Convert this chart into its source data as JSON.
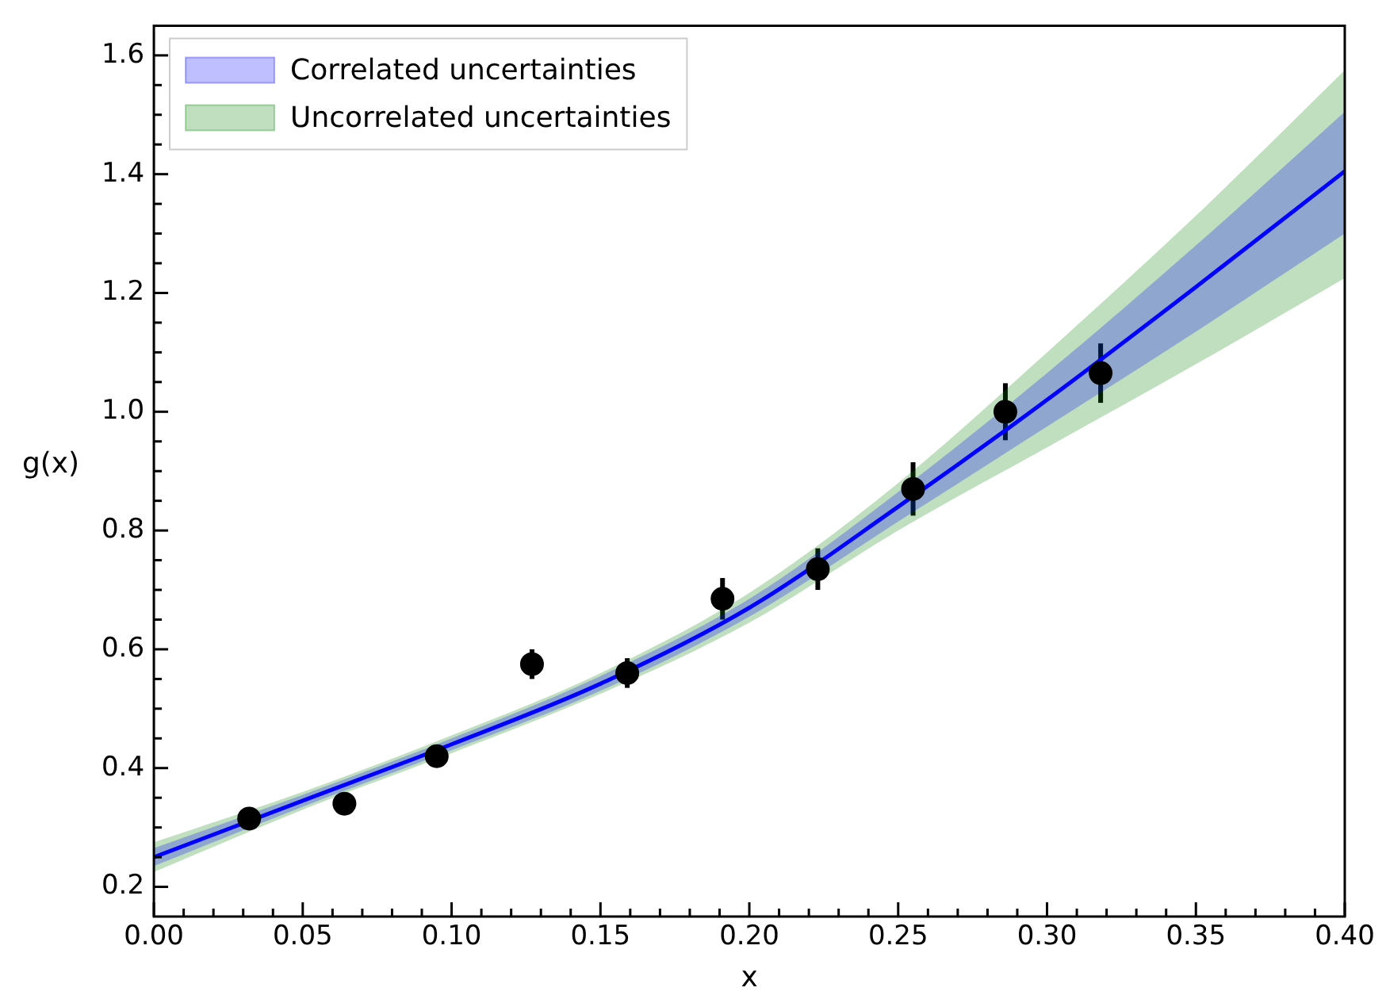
{
  "chart_data": {
    "type": "line",
    "xlabel": "x",
    "ylabel": "g(x)",
    "xlim": [
      0,
      0.4
    ],
    "ylim": [
      0.15,
      1.65
    ],
    "xticks": [
      {
        "value": 0,
        "label": "0.00"
      },
      {
        "value": 0.01,
        "label": null
      },
      {
        "value": 0.02,
        "label": null
      },
      {
        "value": 0.03,
        "label": null
      },
      {
        "value": 0.04,
        "label": null
      },
      {
        "value": 0.05,
        "label": "0.05"
      },
      {
        "value": 0.06,
        "label": null
      },
      {
        "value": 0.07,
        "label": null
      },
      {
        "value": 0.08,
        "label": null
      },
      {
        "value": 0.09,
        "label": null
      },
      {
        "value": 0.1,
        "label": "0.10"
      },
      {
        "value": 0.11,
        "label": null
      },
      {
        "value": 0.12,
        "label": null
      },
      {
        "value": 0.13,
        "label": null
      },
      {
        "value": 0.14,
        "label": null
      },
      {
        "value": 0.15,
        "label": "0.15"
      },
      {
        "value": 0.16,
        "label": null
      },
      {
        "value": 0.17,
        "label": null
      },
      {
        "value": 0.18,
        "label": null
      },
      {
        "value": 0.19,
        "label": null
      },
      {
        "value": 0.2,
        "label": "0.20"
      },
      {
        "value": 0.21,
        "label": null
      },
      {
        "value": 0.22,
        "label": null
      },
      {
        "value": 0.23,
        "label": null
      },
      {
        "value": 0.24,
        "label": null
      },
      {
        "value": 0.25,
        "label": "0.25"
      },
      {
        "value": 0.26,
        "label": null
      },
      {
        "value": 0.27,
        "label": null
      },
      {
        "value": 0.28,
        "label": null
      },
      {
        "value": 0.29,
        "label": null
      },
      {
        "value": 0.3,
        "label": "0.30"
      },
      {
        "value": 0.31,
        "label": null
      },
      {
        "value": 0.32,
        "label": null
      },
      {
        "value": 0.33,
        "label": null
      },
      {
        "value": 0.34,
        "label": null
      },
      {
        "value": 0.35,
        "label": "0.35"
      },
      {
        "value": 0.36,
        "label": null
      },
      {
        "value": 0.37,
        "label": null
      },
      {
        "value": 0.38,
        "label": null
      },
      {
        "value": 0.39,
        "label": null
      },
      {
        "value": 0.4,
        "label": "0.40"
      }
    ],
    "yticks": [
      {
        "value": 0.2,
        "label": "0.2"
      },
      {
        "value": 0.25,
        "label": null
      },
      {
        "value": 0.3,
        "label": null
      },
      {
        "value": 0.35,
        "label": null
      },
      {
        "value": 0.4,
        "label": "0.4"
      },
      {
        "value": 0.45,
        "label": null
      },
      {
        "value": 0.5,
        "label": null
      },
      {
        "value": 0.55,
        "label": null
      },
      {
        "value": 0.6,
        "label": "0.6"
      },
      {
        "value": 0.65,
        "label": null
      },
      {
        "value": 0.7,
        "label": null
      },
      {
        "value": 0.75,
        "label": null
      },
      {
        "value": 0.8,
        "label": "0.8"
      },
      {
        "value": 0.85,
        "label": null
      },
      {
        "value": 0.9,
        "label": null
      },
      {
        "value": 0.95,
        "label": null
      },
      {
        "value": 1.0,
        "label": "1.0"
      },
      {
        "value": 1.05,
        "label": null
      },
      {
        "value": 1.1,
        "label": null
      },
      {
        "value": 1.15,
        "label": null
      },
      {
        "value": 1.2,
        "label": "1.2"
      },
      {
        "value": 1.25,
        "label": null
      },
      {
        "value": 1.3,
        "label": null
      },
      {
        "value": 1.35,
        "label": null
      },
      {
        "value": 1.4,
        "label": "1.4"
      },
      {
        "value": 1.45,
        "label": null
      },
      {
        "value": 1.5,
        "label": null
      },
      {
        "value": 1.55,
        "label": null
      },
      {
        "value": 1.6,
        "label": "1.6"
      }
    ],
    "legend": "top left",
    "series": [
      {
        "name": "Correlated uncertainties",
        "color": "#0000ff",
        "x": [
          0,
          0.05,
          0.1,
          0.15,
          0.2,
          0.25,
          0.3,
          0.35,
          0.4
        ],
        "values": [
          0.25,
          0.345,
          0.44,
          0.542,
          0.67,
          0.84,
          1.02,
          1.21,
          1.405
        ],
        "lower": [
          0.235,
          0.335,
          0.43,
          0.53,
          0.655,
          0.815,
          0.975,
          1.135,
          1.3
        ],
        "upper": [
          0.265,
          0.355,
          0.45,
          0.555,
          0.685,
          0.865,
          1.065,
          1.28,
          1.505
        ]
      },
      {
        "name": "Uncorrelated uncertainties",
        "color": "#008000",
        "x": [
          0,
          0.05,
          0.1,
          0.15,
          0.2,
          0.25,
          0.3,
          0.35,
          0.4
        ],
        "values": [
          null,
          null,
          null,
          null,
          null,
          null,
          null,
          null,
          null
        ],
        "lower": [
          0.225,
          0.33,
          0.425,
          0.525,
          0.645,
          0.8,
          0.94,
          1.08,
          1.225
        ],
        "upper": [
          0.275,
          0.36,
          0.455,
          0.56,
          0.695,
          0.88,
          1.1,
          1.33,
          1.575
        ]
      },
      {
        "type": "scatter",
        "color": "#000000",
        "marker": "circle",
        "x": [
          0.032,
          0.064,
          0.095,
          0.127,
          0.159,
          0.191,
          0.223,
          0.255,
          0.286,
          0.318
        ],
        "values": [
          0.315,
          0.34,
          0.42,
          0.575,
          0.56,
          0.685,
          0.735,
          0.87,
          1.0,
          1.065
        ],
        "errors": [
          0.01,
          0.01,
          0.01,
          0.025,
          0.025,
          0.035,
          0.035,
          0.045,
          0.048,
          0.05
        ]
      }
    ]
  }
}
